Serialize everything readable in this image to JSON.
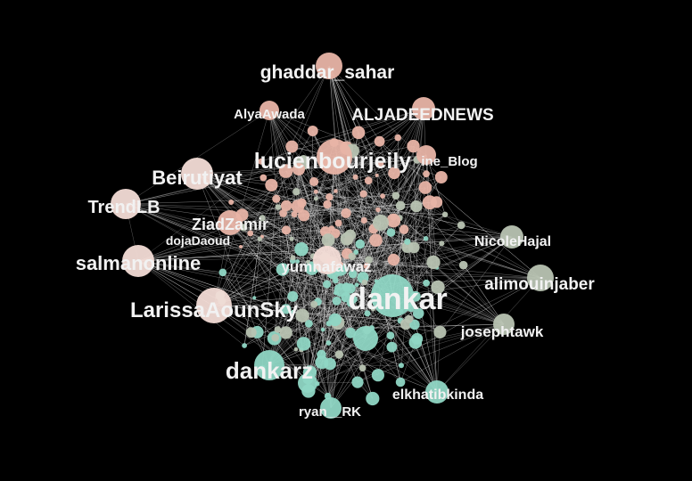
{
  "graph": {
    "colors": {
      "background": "#000000",
      "edge": "#d8d8d8",
      "pink": "#e8b4a6",
      "pink_light": "#f3dcd6",
      "teal": "#8fd6c4",
      "grey_green": "#b8c3b2",
      "label": "#f2f2f2"
    },
    "labels": [
      {
        "id": "ghaddar_sahar",
        "text": "ghaddar_sahar"
      },
      {
        "id": "AlyaAwada",
        "text": "AlyaAwada"
      },
      {
        "id": "ALJADEEDNEWS",
        "text": "ALJADEEDNEWS"
      },
      {
        "id": "lucienbourjeily",
        "text": "lucienbourjeily"
      },
      {
        "id": "ine_Blog",
        "text": "ine_Blog"
      },
      {
        "id": "Beirutiyat",
        "text": "Beirutiyat"
      },
      {
        "id": "TrendLB",
        "text": "TrendLB"
      },
      {
        "id": "ZiadZamir",
        "text": "ZiadZamir"
      },
      {
        "id": "dojaDaoud",
        "text": "dojaDaoud"
      },
      {
        "id": "NicoleHajal",
        "text": "NicoleHajal"
      },
      {
        "id": "salmanonline",
        "text": "salmanonline"
      },
      {
        "id": "yumnafawaz",
        "text": "yumnafawaz"
      },
      {
        "id": "alimouinjaber",
        "text": "alimouinjaber"
      },
      {
        "id": "dankar",
        "text": "dankar"
      },
      {
        "id": "LarissaAounSky",
        "text": "LarissaAounSky"
      },
      {
        "id": "josephtawk",
        "text": "josephtawk"
      },
      {
        "id": "dankarz",
        "text": "dankarz"
      },
      {
        "id": "elkhatibkinda",
        "text": "elkhatibkinda"
      },
      {
        "id": "ryan_RK",
        "text": "ryan__RK"
      }
    ]
  }
}
